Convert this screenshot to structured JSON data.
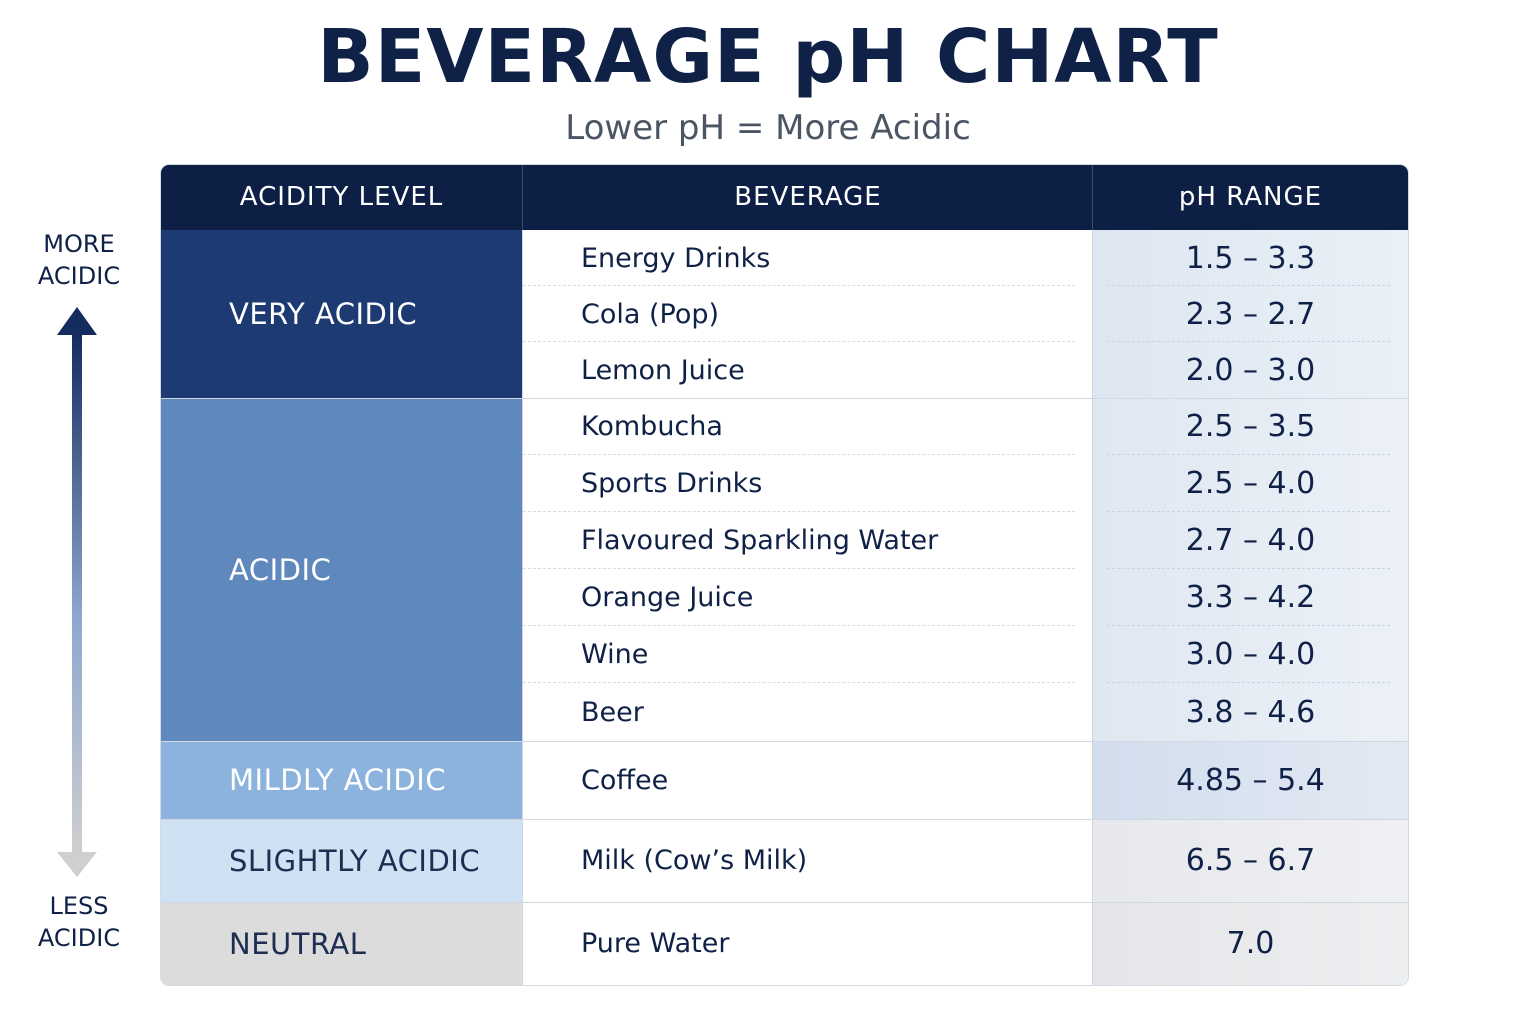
{
  "title": "BEVERAGE pH CHART",
  "subtitle": "Lower pH = More Acidic",
  "scale": {
    "top_line1": "MORE",
    "top_line2": "ACIDIC",
    "bottom_line1": "LESS",
    "bottom_line2": "ACIDIC",
    "arrow_icon": "double-arrow-vertical-icon"
  },
  "colors": {
    "header": "#0d1f45",
    "very_acidic": "#1d3a72",
    "acidic": "#5f88bd",
    "mildly_acidic": "#8bb3de",
    "slightly_acidic": "#cfe1f2",
    "neutral": "#dcdcdc"
  },
  "chart_data": {
    "type": "table",
    "title": "BEVERAGE pH CHART",
    "subtitle": "Lower pH = More Acidic",
    "columns": [
      "ACIDITY LEVEL",
      "BEVERAGE",
      "pH RANGE"
    ],
    "groups": [
      {
        "level": "VERY ACIDIC",
        "rows": [
          {
            "beverage": "Energy Drinks",
            "ph": "1.5 – 3.3"
          },
          {
            "beverage": "Cola (Pop)",
            "ph": "2.3 – 2.7"
          },
          {
            "beverage": "Lemon Juice",
            "ph": "2.0 – 3.0"
          }
        ]
      },
      {
        "level": "ACIDIC",
        "rows": [
          {
            "beverage": "Kombucha",
            "ph": "2.5 – 3.5"
          },
          {
            "beverage": "Sports Drinks",
            "ph": "2.5 – 4.0"
          },
          {
            "beverage": "Flavoured Sparkling Water",
            "ph": "2.7 – 4.0"
          },
          {
            "beverage": "Orange Juice",
            "ph": "3.3 – 4.2"
          },
          {
            "beverage": "Wine",
            "ph": "3.0 – 4.0"
          },
          {
            "beverage": "Beer",
            "ph": "3.8 – 4.6"
          }
        ]
      },
      {
        "level": "MILDLY ACIDIC",
        "rows": [
          {
            "beverage": "Coffee",
            "ph": "4.85 – 5.4"
          }
        ]
      },
      {
        "level": "SLIGHTLY ACIDIC",
        "rows": [
          {
            "beverage": "Milk (Cow’s Milk)",
            "ph": "6.5 – 6.7"
          }
        ]
      },
      {
        "level": "NEUTRAL",
        "rows": [
          {
            "beverage": "Pure Water",
            "ph": "7.0"
          }
        ]
      }
    ]
  }
}
